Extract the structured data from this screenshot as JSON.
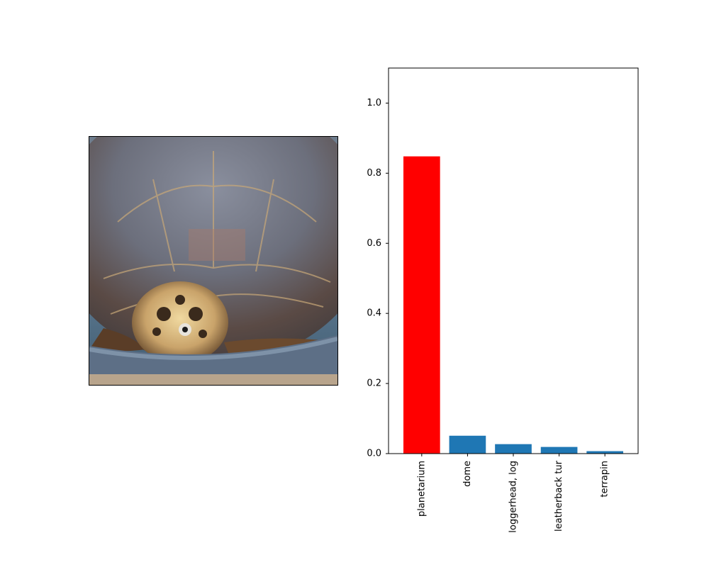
{
  "chart_data": {
    "type": "bar",
    "categories": [
      "planetarium",
      "dome",
      "loggerhead, log",
      "leatherback tur",
      "terrapin"
    ],
    "values": [
      0.848,
      0.051,
      0.027,
      0.019,
      0.007
    ],
    "colors": [
      "#ff0000",
      "#1f77b4",
      "#1f77b4",
      "#1f77b4",
      "#1f77b4"
    ],
    "highlight_color": "#ff0000",
    "bar_color": "#1f77b4",
    "ylim": [
      0,
      1.1
    ],
    "yticks": [
      0.0,
      0.2,
      0.4,
      0.6,
      0.8,
      1.0
    ],
    "ytick_labels": [
      "0.0",
      "0.2",
      "0.4",
      "0.6",
      "0.8",
      "1.0"
    ],
    "xlabel_rotation": "vertical",
    "grid": false,
    "title": "",
    "xlabel": "",
    "ylabel": ""
  },
  "image_panel": {
    "subject": "sea turtle photo",
    "icon": "turtle-photo"
  }
}
